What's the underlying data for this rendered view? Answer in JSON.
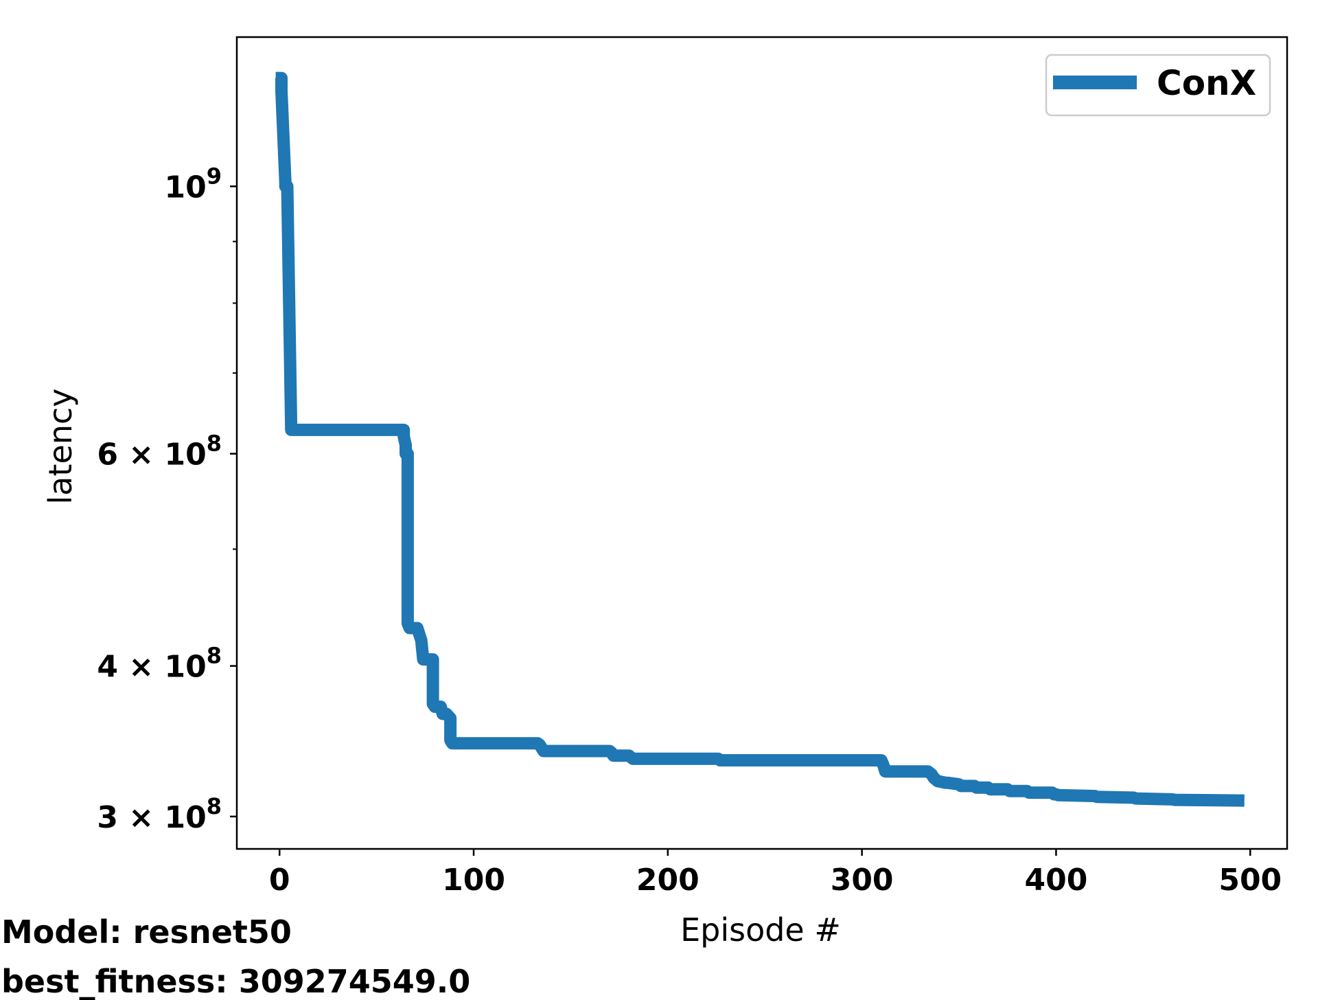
{
  "chart_data": {
    "type": "line",
    "title": "",
    "xlabel": "Episode #",
    "ylabel": "latency",
    "yscale": "log",
    "xlim": [
      -22,
      519
    ],
    "ylim": [
      282000000.0,
      1330000000.0
    ],
    "x_ticks": [
      0,
      100,
      200,
      300,
      400,
      500
    ],
    "x_tick_labels": [
      "0",
      "100",
      "200",
      "300",
      "400",
      "500"
    ],
    "y_ticks": [
      {
        "value": 1000000000,
        "base": "10",
        "exp": "9"
      },
      {
        "value": 600000000,
        "base": "6 × 10",
        "exp": "8"
      },
      {
        "value": 400000000,
        "base": "4 × 10",
        "exp": "8"
      },
      {
        "value": 300000000,
        "base": "3 × 10",
        "exp": "8"
      }
    ],
    "y_minor_ticks": [
      700000000,
      800000000,
      900000000,
      500000000
    ],
    "grid": false,
    "legend_position": "top-right",
    "series": [
      {
        "name": "ConX",
        "color": "#1f77b4",
        "x": [
          -2,
          1,
          1,
          3,
          3,
          4,
          6,
          64,
          64,
          65,
          65,
          66,
          66,
          67,
          67,
          70,
          71,
          72,
          73,
          74,
          76,
          79,
          79,
          80,
          81,
          82,
          83,
          84,
          86,
          88,
          88,
          89,
          90,
          133,
          134,
          135,
          136,
          170,
          171,
          172,
          173,
          180,
          181,
          182,
          183,
          225,
          226,
          227,
          228,
          310,
          311,
          312,
          313,
          334,
          335,
          336,
          337,
          338,
          339,
          343,
          344,
          350,
          351,
          358,
          359,
          365,
          366,
          375,
          376,
          385,
          386,
          398,
          399,
          400,
          401,
          420,
          421,
          440,
          441,
          460,
          461,
          497
        ],
        "y": [
          1230000000,
          1230000000,
          1200000000,
          1008000000,
          1000000000,
          1000000000,
          628000000,
          628000000,
          620000000,
          610000000,
          600000000,
          600000000,
          434000000,
          430000000,
          430000000,
          430000000,
          430000000,
          425000000,
          420000000,
          405000000,
          405000000,
          405000000,
          372000000,
          370000000,
          370000000,
          370000000,
          370000000,
          365000000,
          365000000,
          362000000,
          347000000,
          345000000,
          345000000,
          345000000,
          344000000,
          342000000,
          340000000,
          340000000,
          339000000,
          337000000,
          337000000,
          337000000,
          336000000,
          335000000,
          335000000,
          335000000,
          335000000,
          334000000,
          334000000,
          334000000,
          331000000,
          327000000,
          327000000,
          327000000,
          326000000,
          325000000,
          323000000,
          322000000,
          321000000,
          320000000,
          320000000,
          319000000,
          318000000,
          318000000,
          317000000,
          317000000,
          316000000,
          316000000,
          315000000,
          315000000,
          314000000,
          314000000,
          313000000,
          313000000,
          312500000,
          312000000,
          311500000,
          311000000,
          310500000,
          310000000,
          309700000,
          309274549
        ]
      }
    ]
  },
  "legend": {
    "label": "ConX"
  },
  "footer": {
    "model": "Model: resnet50",
    "fitness": "best_fitness: 309274549.0"
  }
}
